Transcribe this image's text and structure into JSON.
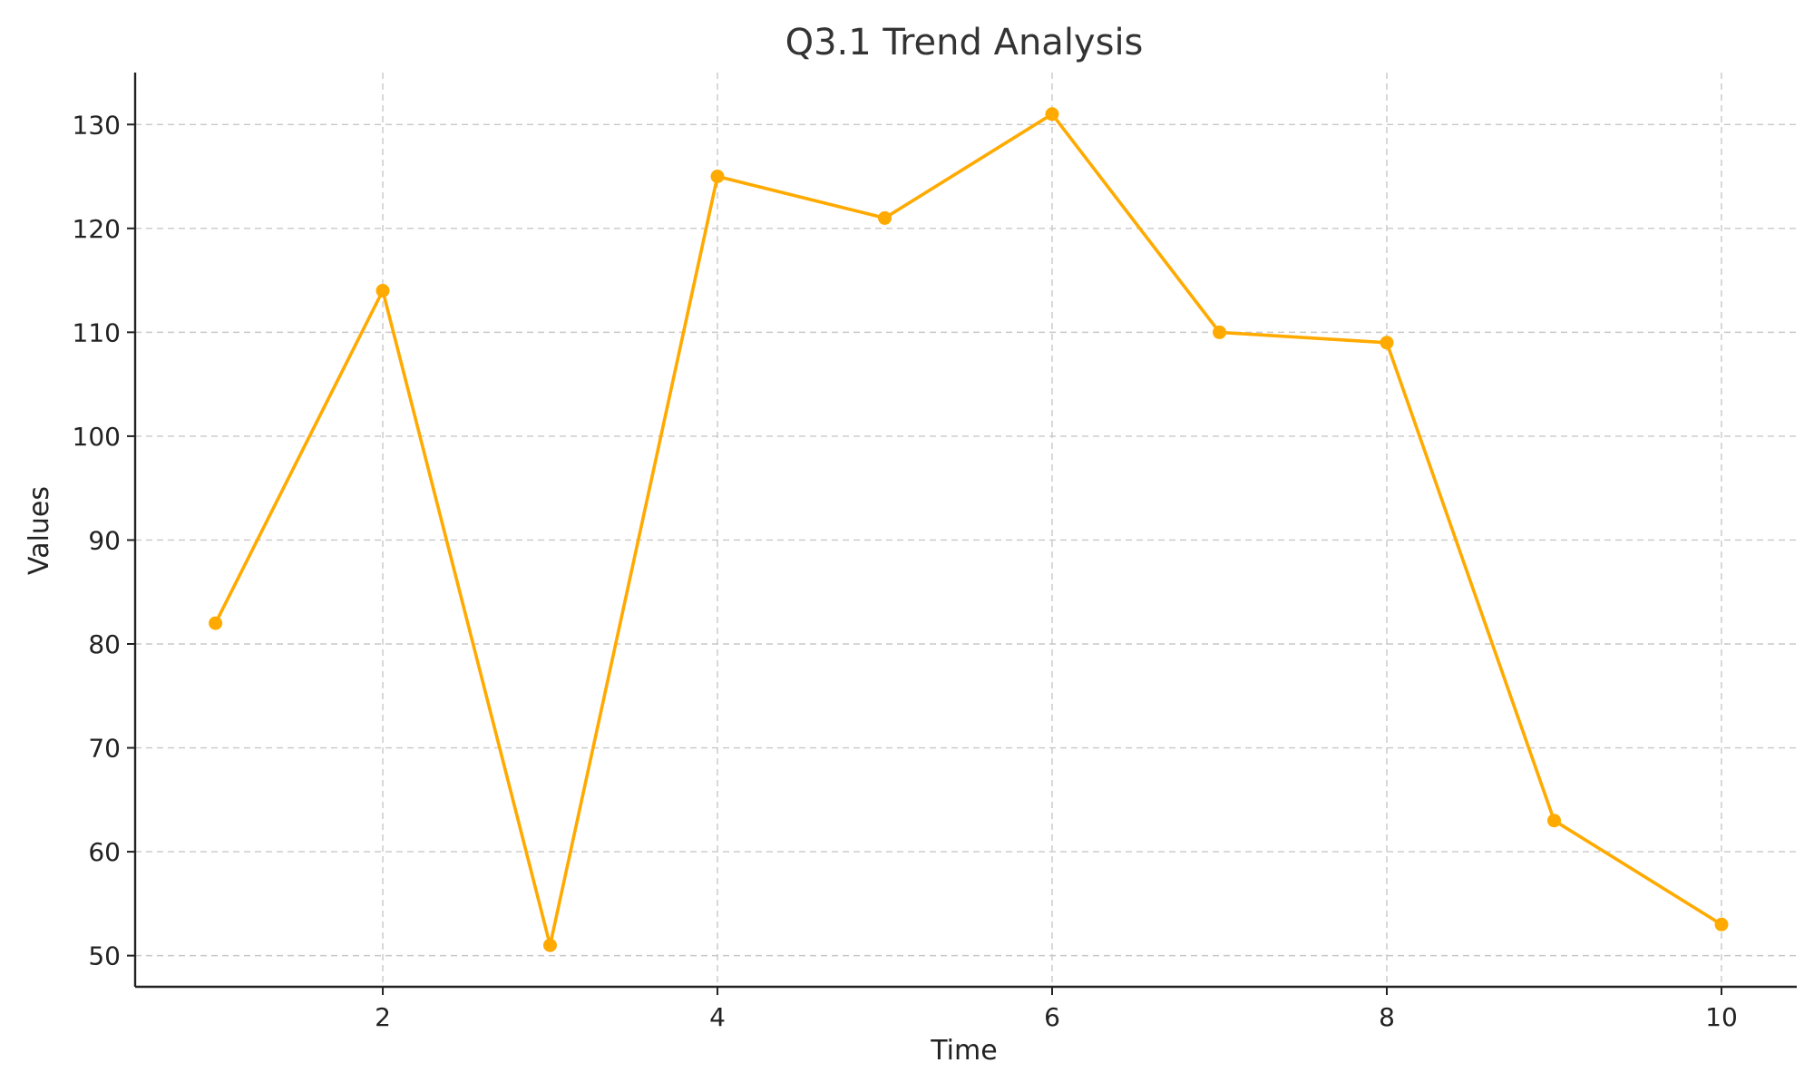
{
  "chart_data": {
    "type": "line",
    "title": "Q3.1 Trend Analysis",
    "xlabel": "Time",
    "ylabel": "Values",
    "x": [
      1,
      2,
      3,
      4,
      5,
      6,
      7,
      8,
      9,
      10
    ],
    "series": [
      {
        "values": [
          82,
          114,
          51,
          125,
          121,
          131,
          110,
          109,
          63,
          53
        ],
        "color": "#FFAA00"
      }
    ],
    "xticks": [
      2,
      4,
      6,
      8,
      10
    ],
    "yticks": [
      50,
      60,
      70,
      80,
      90,
      100,
      110,
      120,
      130
    ],
    "xlim": [
      0.52,
      10.45
    ],
    "ylim": [
      47,
      135
    ],
    "grid": true,
    "marker": "circle",
    "colors": {
      "line": "#FFAA00",
      "grid": "#c8c8c8",
      "axis": "#222222",
      "title": "#333333"
    }
  }
}
